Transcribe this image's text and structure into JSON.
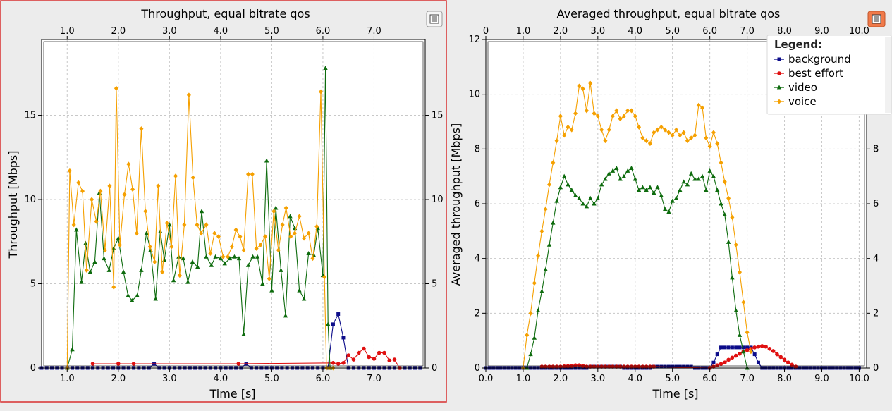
{
  "chart_data": [
    {
      "id": "left",
      "type": "line",
      "title": "Throughput, equal bitrate qos",
      "xlabel": "Time [s]",
      "ylabel": "Throughput [Mbps]",
      "xlim": [
        0.5,
        8.0
      ],
      "ylim": [
        0,
        19.5
      ],
      "xticks_bottom": [
        1.0,
        2.0,
        3.0,
        4.0,
        5.0,
        6.0,
        7.0
      ],
      "xticks_top": [
        1.0,
        2.0,
        3.0,
        4.0,
        5.0,
        6.0,
        7.0
      ],
      "yticks": [
        0,
        5,
        10,
        15
      ],
      "grid": true,
      "series": [
        {
          "name": "background",
          "color": "#0c0c8a",
          "marker": "square",
          "x": [
            0.5,
            0.6,
            0.7,
            0.8,
            0.9,
            1.0,
            1.1,
            1.2,
            1.3,
            1.4,
            1.5,
            1.6,
            1.7,
            1.8,
            1.9,
            2.0,
            2.1,
            2.2,
            2.3,
            2.4,
            2.5,
            2.6,
            2.7,
            2.8,
            2.9,
            3.0,
            3.1,
            3.2,
            3.3,
            3.4,
            3.5,
            3.6,
            3.7,
            3.8,
            3.9,
            4.0,
            4.1,
            4.2,
            4.3,
            4.4,
            4.5,
            4.6,
            4.7,
            4.8,
            4.9,
            5.0,
            5.1,
            5.2,
            5.3,
            5.4,
            5.5,
            5.6,
            5.7,
            5.8,
            5.9,
            6.0,
            6.1,
            6.2,
            6.3,
            6.4,
            6.5,
            6.6,
            6.7,
            6.8,
            6.9,
            7.0,
            7.1,
            7.2,
            7.3,
            7.4,
            7.5,
            7.6,
            7.7,
            7.8,
            7.9
          ],
          "y": [
            0,
            0,
            0,
            0,
            0,
            0,
            0,
            0,
            0,
            0,
            0,
            0,
            0,
            0,
            0,
            0,
            0,
            0,
            0,
            0,
            0,
            0,
            0.25,
            0,
            0,
            0,
            0,
            0,
            0,
            0,
            0,
            0,
            0,
            0,
            0,
            0,
            0,
            0,
            0,
            0,
            0.25,
            0,
            0,
            0,
            0,
            0,
            0,
            0,
            0,
            0,
            0,
            0,
            0,
            0,
            0,
            0,
            0,
            2.6,
            3.2,
            1.8,
            0,
            0,
            0,
            0,
            0,
            0,
            0,
            0,
            0,
            0,
            0,
            0,
            0,
            0,
            0
          ]
        },
        {
          "name": "best effort",
          "color": "#e01010",
          "marker": "circle",
          "x": [
            1.5,
            2.0,
            2.3,
            4.35,
            6.2,
            6.3,
            6.4,
            6.5,
            6.6,
            6.7,
            6.8,
            6.9,
            7.0,
            7.1,
            7.2,
            7.3,
            7.4,
            7.5
          ],
          "y": [
            0.25,
            0.25,
            0.25,
            0.25,
            0.3,
            0.25,
            0.3,
            0.75,
            0.5,
            0.9,
            1.15,
            0.65,
            0.55,
            0.9,
            0.9,
            0.45,
            0.5,
            0
          ]
        },
        {
          "name": "video",
          "color": "#0d6b0d",
          "marker": "triangle",
          "x": [
            1.0,
            1.1,
            1.18,
            1.28,
            1.36,
            1.45,
            1.54,
            1.63,
            1.72,
            1.82,
            1.91,
            2.0,
            2.1,
            2.19,
            2.27,
            2.37,
            2.45,
            2.55,
            2.63,
            2.73,
            2.82,
            2.9,
            3.0,
            3.08,
            3.18,
            3.27,
            3.36,
            3.45,
            3.55,
            3.63,
            3.72,
            3.82,
            3.9,
            4.0,
            4.08,
            4.18,
            4.27,
            4.36,
            4.45,
            4.54,
            4.63,
            4.72,
            4.82,
            4.9,
            5.0,
            5.08,
            5.18,
            5.27,
            5.36,
            5.45,
            5.54,
            5.63,
            5.72,
            5.82,
            5.9,
            6.0,
            6.05,
            6.1,
            6.14
          ],
          "y": [
            0,
            1.1,
            8.2,
            5.1,
            7.4,
            5.7,
            6.3,
            10.4,
            6.5,
            5.8,
            7.1,
            7.7,
            5.7,
            4.3,
            4.0,
            4.3,
            5.8,
            8.0,
            7.0,
            4.1,
            8.1,
            6.4,
            8.5,
            5.2,
            6.6,
            6.5,
            5.1,
            6.3,
            6.0,
            9.3,
            6.6,
            6.1,
            6.6,
            6.5,
            6.2,
            6.5,
            6.6,
            6.5,
            2.0,
            6.1,
            6.6,
            6.6,
            5.0,
            12.3,
            4.6,
            9.5,
            5.8,
            3.1,
            9.0,
            8.3,
            4.6,
            4.1,
            6.8,
            6.7,
            8.3,
            5.5,
            17.8,
            2.6,
            0
          ]
        },
        {
          "name": "voice",
          "color": "#f5a000",
          "marker": "diamond",
          "x": [
            1.0,
            1.05,
            1.13,
            1.22,
            1.3,
            1.38,
            1.48,
            1.57,
            1.65,
            1.74,
            1.83,
            1.91,
            1.96,
            2.03,
            2.12,
            2.2,
            2.28,
            2.36,
            2.45,
            2.53,
            2.62,
            2.71,
            2.78,
            2.86,
            2.95,
            3.04,
            3.12,
            3.2,
            3.29,
            3.38,
            3.46,
            3.54,
            3.62,
            3.72,
            3.8,
            3.88,
            3.96,
            4.05,
            4.14,
            4.22,
            4.3,
            4.38,
            4.45,
            4.54,
            4.62,
            4.7,
            4.78,
            4.87,
            4.95,
            5.04,
            5.13,
            5.21,
            5.28,
            5.37,
            5.45,
            5.54,
            5.63,
            5.72,
            5.8,
            5.88,
            5.96,
            6.03,
            6.07,
            6.12,
            6.2
          ],
          "y": [
            0,
            11.7,
            8.5,
            11.0,
            10.5,
            5.8,
            10.0,
            8.7,
            10.5,
            7.0,
            10.8,
            4.8,
            16.6,
            7.3,
            10.3,
            12.1,
            10.6,
            8.0,
            14.2,
            9.3,
            7.2,
            6.3,
            10.8,
            5.7,
            8.6,
            7.2,
            11.4,
            5.5,
            8.5,
            16.2,
            11.3,
            8.5,
            8.0,
            8.5,
            6.8,
            8.0,
            7.8,
            6.6,
            6.6,
            7.2,
            8.2,
            7.8,
            7.0,
            11.5,
            11.5,
            7.1,
            7.3,
            7.8,
            5.3,
            9.3,
            7.0,
            8.5,
            9.5,
            7.8,
            8.0,
            9.0,
            7.7,
            8.0,
            6.5,
            8.4,
            16.4,
            5.4,
            0,
            0,
            0
          ]
        }
      ]
    },
    {
      "id": "right",
      "type": "line",
      "title": "Averaged throughput, equal bitrate qos",
      "xlabel": "Time [s]",
      "ylabel": "Averaged throughput [Mbps]",
      "xlim": [
        0.0,
        10.2
      ],
      "ylim": [
        0,
        12
      ],
      "xticks_bottom": [
        0.0,
        1.0,
        2.0,
        3.0,
        4.0,
        5.0,
        6.0,
        7.0,
        8.0,
        9.0,
        10.0
      ],
      "xticks_top": [
        0,
        1.0,
        2.0,
        3.0,
        4.0,
        5.0,
        6.0,
        7.0,
        8.0,
        9.0,
        10.0
      ],
      "yticks": [
        0,
        2,
        4,
        6,
        8,
        10,
        12
      ],
      "grid": true,
      "legend": {
        "title": "Legend:",
        "location": "top-right"
      },
      "series": [
        {
          "name": "background",
          "color": "#0c0c8a",
          "marker": "square",
          "x": [
            0.0,
            0.1,
            0.2,
            0.3,
            0.4,
            0.5,
            0.6,
            0.7,
            0.8,
            0.9,
            1.0,
            1.1,
            1.2,
            1.3,
            1.4,
            1.5,
            1.6,
            1.7,
            1.8,
            1.9,
            2.0,
            2.1,
            2.2,
            2.3,
            2.4,
            2.5,
            2.6,
            2.7,
            2.8,
            2.9,
            3.0,
            3.1,
            3.2,
            3.3,
            3.4,
            3.5,
            3.6,
            3.7,
            3.8,
            3.9,
            4.0,
            4.1,
            4.2,
            4.3,
            4.4,
            4.5,
            4.6,
            4.7,
            4.8,
            4.9,
            5.0,
            5.1,
            5.2,
            5.3,
            5.4,
            5.5,
            5.6,
            5.7,
            5.8,
            5.9,
            6.0,
            6.1,
            6.2,
            6.3,
            6.4,
            6.5,
            6.6,
            6.7,
            6.8,
            6.9,
            7.0,
            7.1,
            7.2,
            7.3,
            7.4,
            7.5,
            7.6,
            7.7,
            7.8,
            7.9,
            8.0,
            8.1,
            8.2,
            8.3,
            8.4,
            8.5,
            8.6,
            8.7,
            8.8,
            8.9,
            9.0,
            9.1,
            9.2,
            9.3,
            9.4,
            9.5,
            9.6,
            9.7,
            9.8,
            9.9,
            10.0
          ],
          "y": [
            0,
            0,
            0,
            0,
            0,
            0,
            0,
            0,
            0,
            0,
            0,
            0,
            0,
            0,
            0,
            0,
            0,
            0,
            0,
            0,
            0,
            0,
            0,
            0,
            0,
            0,
            0,
            0,
            0.05,
            0.05,
            0.05,
            0.05,
            0.05,
            0.05,
            0.05,
            0.05,
            0.05,
            0,
            0,
            0,
            0,
            0,
            0,
            0,
            0,
            0.05,
            0.05,
            0.05,
            0.05,
            0.05,
            0.05,
            0.05,
            0.05,
            0.05,
            0.05,
            0.05,
            0,
            0,
            0,
            0,
            0,
            0.2,
            0.5,
            0.75,
            0.75,
            0.75,
            0.75,
            0.75,
            0.75,
            0.75,
            0.75,
            0.75,
            0.5,
            0.2,
            0,
            0,
            0,
            0,
            0,
            0,
            0,
            0,
            0,
            0,
            0,
            0,
            0,
            0,
            0,
            0,
            0,
            0,
            0,
            0,
            0,
            0,
            0,
            0,
            0,
            0,
            0
          ]
        },
        {
          "name": "best effort",
          "color": "#e01010",
          "marker": "circle",
          "x": [
            1.5,
            1.6,
            1.7,
            1.8,
            1.9,
            2.0,
            2.1,
            2.2,
            2.3,
            2.4,
            2.5,
            2.6,
            2.7,
            2.8,
            2.9,
            3.0,
            3.1,
            3.2,
            3.3,
            3.4,
            3.5,
            3.6,
            3.7,
            3.8,
            3.9,
            4.0,
            4.1,
            4.2,
            4.3,
            4.4,
            4.5,
            6.0,
            6.1,
            6.2,
            6.3,
            6.4,
            6.5,
            6.6,
            6.7,
            6.8,
            6.9,
            7.0,
            7.1,
            7.2,
            7.3,
            7.4,
            7.5,
            7.6,
            7.7,
            7.8,
            7.9,
            8.0,
            8.1,
            8.2,
            8.3
          ],
          "y": [
            0.05,
            0.05,
            0.05,
            0.05,
            0.05,
            0.05,
            0.06,
            0.07,
            0.08,
            0.1,
            0.1,
            0.08,
            0.05,
            0.05,
            0.05,
            0.05,
            0.05,
            0.05,
            0.05,
            0.05,
            0.05,
            0.05,
            0.05,
            0.05,
            0.05,
            0.05,
            0.05,
            0.05,
            0.05,
            0.05,
            0.05,
            0,
            0.05,
            0.1,
            0.15,
            0.2,
            0.3,
            0.38,
            0.45,
            0.52,
            0.6,
            0.65,
            0.7,
            0.75,
            0.78,
            0.8,
            0.78,
            0.7,
            0.62,
            0.5,
            0.4,
            0.3,
            0.2,
            0.12,
            0.05
          ]
        },
        {
          "name": "video",
          "color": "#0d6b0d",
          "marker": "triangle",
          "x": [
            1.1,
            1.2,
            1.3,
            1.4,
            1.5,
            1.6,
            1.7,
            1.8,
            1.9,
            2.0,
            2.1,
            2.2,
            2.3,
            2.4,
            2.5,
            2.6,
            2.7,
            2.8,
            2.9,
            3.0,
            3.1,
            3.2,
            3.3,
            3.4,
            3.5,
            3.6,
            3.7,
            3.8,
            3.9,
            4.0,
            4.1,
            4.2,
            4.3,
            4.4,
            4.5,
            4.6,
            4.7,
            4.8,
            4.9,
            5.0,
            5.1,
            5.2,
            5.3,
            5.4,
            5.5,
            5.6,
            5.7,
            5.8,
            5.9,
            6.0,
            6.1,
            6.2,
            6.3,
            6.4,
            6.5,
            6.6,
            6.7,
            6.8,
            6.9,
            7.0
          ],
          "y": [
            0,
            0.5,
            1.1,
            2.1,
            2.8,
            3.6,
            4.5,
            5.3,
            6.1,
            6.6,
            7.0,
            6.7,
            6.5,
            6.3,
            6.2,
            6.0,
            5.9,
            6.2,
            6.0,
            6.2,
            6.7,
            6.9,
            7.1,
            7.2,
            7.3,
            6.9,
            7.0,
            7.2,
            7.3,
            6.9,
            6.5,
            6.6,
            6.5,
            6.6,
            6.4,
            6.6,
            6.3,
            5.8,
            5.7,
            6.1,
            6.2,
            6.5,
            6.8,
            6.7,
            7.1,
            6.9,
            6.9,
            7.0,
            6.5,
            7.2,
            7.0,
            6.5,
            6.0,
            5.6,
            4.6,
            3.3,
            2.1,
            1.2,
            0.6,
            0
          ]
        },
        {
          "name": "voice",
          "color": "#f5a000",
          "marker": "diamond",
          "x": [
            1.0,
            1.1,
            1.2,
            1.3,
            1.4,
            1.5,
            1.6,
            1.7,
            1.8,
            1.9,
            2.0,
            2.1,
            2.2,
            2.3,
            2.4,
            2.5,
            2.6,
            2.7,
            2.8,
            2.9,
            3.0,
            3.1,
            3.2,
            3.3,
            3.4,
            3.5,
            3.6,
            3.7,
            3.8,
            3.9,
            4.0,
            4.1,
            4.2,
            4.3,
            4.4,
            4.5,
            4.6,
            4.7,
            4.8,
            4.9,
            5.0,
            5.1,
            5.2,
            5.3,
            5.4,
            5.5,
            5.6,
            5.7,
            5.8,
            5.9,
            6.0,
            6.1,
            6.2,
            6.3,
            6.4,
            6.5,
            6.6,
            6.7,
            6.8,
            6.9,
            7.0,
            7.1
          ],
          "y": [
            0,
            1.2,
            2.0,
            3.1,
            4.1,
            5.0,
            5.8,
            6.7,
            7.5,
            8.3,
            9.2,
            8.5,
            8.8,
            8.7,
            9.3,
            10.3,
            10.2,
            9.4,
            10.4,
            9.3,
            9.2,
            8.7,
            8.3,
            8.7,
            9.2,
            9.4,
            9.1,
            9.2,
            9.4,
            9.4,
            9.2,
            8.8,
            8.4,
            8.3,
            8.2,
            8.6,
            8.7,
            8.8,
            8.7,
            8.6,
            8.5,
            8.7,
            8.5,
            8.6,
            8.3,
            8.4,
            8.5,
            9.6,
            9.5,
            8.4,
            8.1,
            8.6,
            8.2,
            7.5,
            6.8,
            6.2,
            5.5,
            4.5,
            3.5,
            2.4,
            1.3,
            0.6
          ]
        }
      ]
    }
  ],
  "ui": {
    "left_legend_button_icon": "list-icon",
    "right_legend_button_icon": "list-icon",
    "left_panel_border_color": "#d83030",
    "right_button_color": "#f07a4a"
  }
}
